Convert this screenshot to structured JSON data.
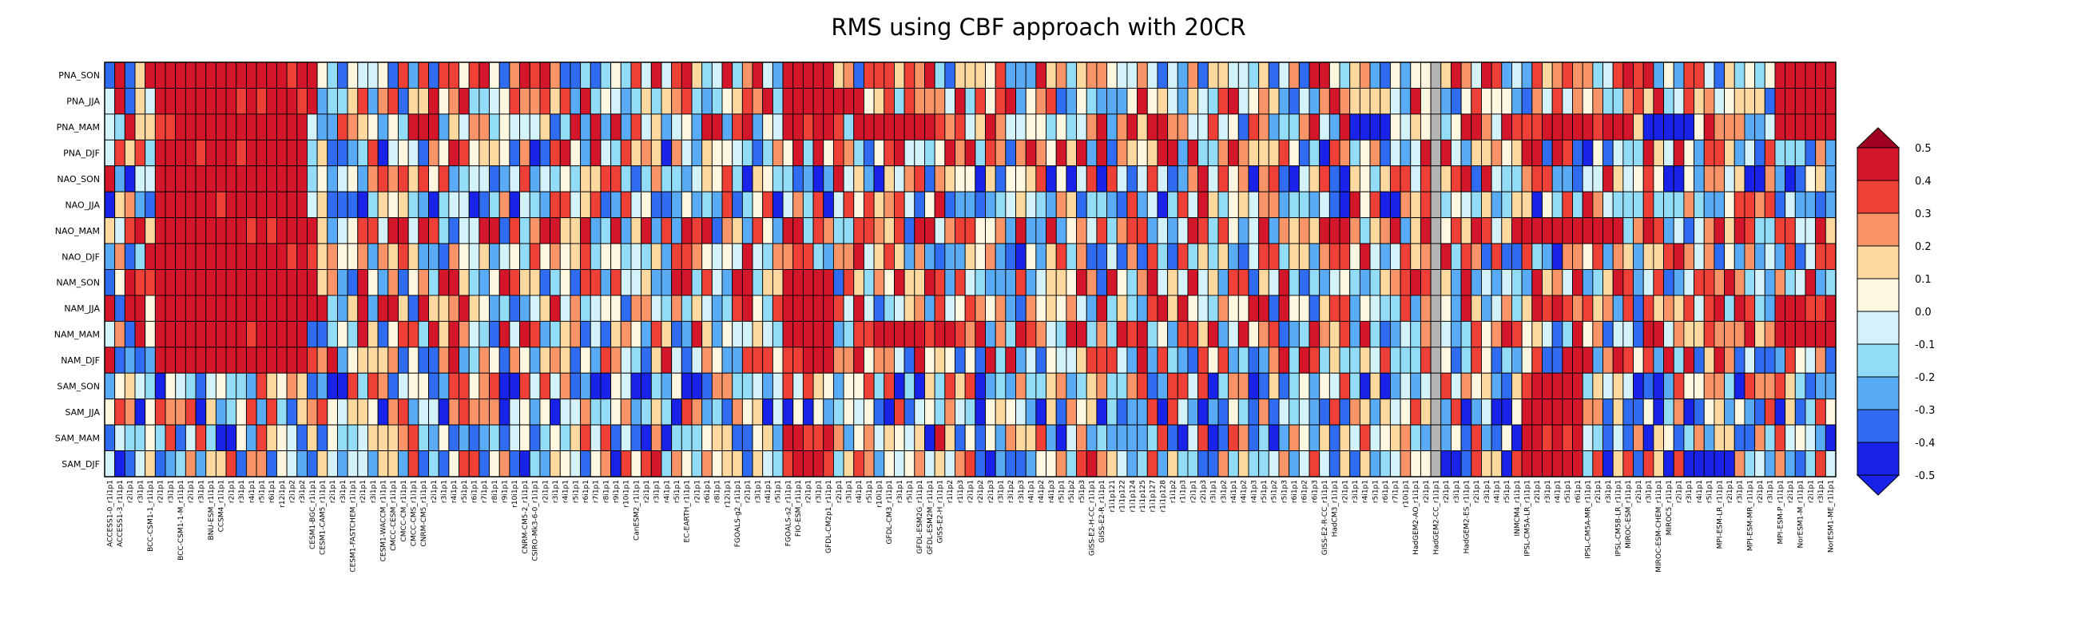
{
  "chart_data": {
    "type": "heatmap",
    "title": "RMS using CBF approach with 20CR",
    "rows": [
      "PNA_SON",
      "PNA_JJA",
      "PNA_MAM",
      "PNA_DJF",
      "NAO_SON",
      "NAO_JJA",
      "NAO_MAM",
      "NAO_DJF",
      "NAM_SON",
      "NAM_JJA",
      "NAM_MAM",
      "NAM_DJF",
      "SAM_SON",
      "SAM_JJA",
      "SAM_MAM",
      "SAM_DJF"
    ],
    "columns": [
      "ACCESS1-0_r1i1p1",
      "ACCESS1-3_r1i1p1",
      "r2i1p1",
      "r3i1p1",
      "BCC-CSM1-1_r1i1p1",
      "r2i1p1",
      "r3i1p1",
      "BCC-CSM1-1-M_r1i1p1",
      "r2i1p1",
      "r3i1p1",
      "BNU-ESM_r1i1p1",
      "CCSM4_r1i1p1",
      "r2i1p1",
      "r3i1p1",
      "r4i1p1",
      "r5i1p1",
      "r6i1p1",
      "r12i1p1",
      "r2i1p2",
      "r3i1p2",
      "CESM1-BGC_r1i1p1",
      "CESM1-CAM5_r1i1p1",
      "r2i1p1",
      "r3i1p1",
      "CESM1-FASTCHEM_r1i1p1",
      "r2i1p1",
      "r3i1p1",
      "CESM1-WACCM_r1i1p1",
      "CMCC-CESM_r1i1p1",
      "CMCC-CM_r1i1p1",
      "CMCC-CMS_r1i1p1",
      "CNRM-CM5_r1i1p1",
      "r2i1p1",
      "r3i1p1",
      "r4i1p1",
      "r5i1p1",
      "r6i1p1",
      "r7i1p1",
      "r8i1p1",
      "r9i1p1",
      "r10i1p1",
      "CNRM-CM5-2_r1i1p1",
      "CSIRO-Mk3-6-0_r1i1p1",
      "r2i1p1",
      "r3i1p1",
      "r4i1p1",
      "r5i1p1",
      "r6i1p1",
      "r7i1p1",
      "r8i1p1",
      "r9i1p1",
      "r10i1p1",
      "CanESM2_r1i1p1",
      "r2i1p1",
      "r3i1p1",
      "r4i1p1",
      "r5i1p1",
      "EC-EARTH_r1i1p1",
      "r2i1p1",
      "r6i1p1",
      "r8i1p1",
      "r12i1p1",
      "FGOALS-g2_r1i1p1",
      "r2i1p1",
      "r3i1p1",
      "r4i1p1",
      "r5i1p1",
      "FGOALS-s2_r1i1p1",
      "FIO-ESM_r1i1p1",
      "r2i1p1",
      "r3i1p1",
      "GFDL-CM2p1_r1i1p1",
      "r2i1p1",
      "r3i1p1",
      "r4i1p1",
      "r5i1p1",
      "r10i1p1",
      "GFDL-CM3_r1i1p1",
      "r3i1p1",
      "r5i1p1",
      "GFDL-ESM2G_r1i1p1",
      "GFDL-ESM2M_r1i1p1",
      "GISS-E2-H_r1i1p1",
      "r1i1p2",
      "r1i1p3",
      "r2i1p1",
      "r2i1p2",
      "r2i1p3",
      "r3i1p1",
      "r3i1p2",
      "r3i1p3",
      "r4i1p1",
      "r4i1p2",
      "r4i1p3",
      "r5i1p1",
      "r5i1p2",
      "r5i1p3",
      "GISS-E2-H-CC_r1i1p1",
      "GISS-E2-R_r1i1p1",
      "r1i1p121",
      "r1i1p122",
      "r1i1p124",
      "r1i1p125",
      "r1i1p127",
      "r1i1p128",
      "r1i1p2",
      "r1i1p3",
      "r2i1p1",
      "r2i1p3",
      "r3i1p1",
      "r3i1p2",
      "r4i1p1",
      "r4i1p2",
      "r4i1p3",
      "r5i1p1",
      "r5i1p2",
      "r5i1p3",
      "r6i1p1",
      "r6i1p2",
      "r6i1p3",
      "GISS-E2-R-CC_r1i1p1",
      "HadCM3_r1i1p1",
      "r2i1p1",
      "r3i1p1",
      "r4i1p1",
      "r5i1p1",
      "r6i1p1",
      "r7i1p1",
      "r10i1p1",
      "HadGEM2-AO_r1i1p1",
      "r2i1p1",
      "HadGEM2-CC_r1i1p1",
      "r2i1p1",
      "r3i1p1",
      "HadGEM2-ES_r1i1p1",
      "r2i1p1",
      "r3i1p1",
      "r4i1p1",
      "r5i1p1",
      "INMCM4_r1i1p1",
      "IPSL-CM5A-LR_r1i1p1",
      "r2i1p1",
      "r3i1p1",
      "r4i1p1",
      "r5i1p1",
      "r6i1p1",
      "IPSL-CM5A-MR_r1i1p1",
      "r2i1p1",
      "r3i1p1",
      "IPSL-CM5B-LR_r1i1p1",
      "MIROC-ESM_r1i1p1",
      "r2i1p1",
      "r3i1p1",
      "MIROC-ESM-CHEM_r1i1p1",
      "MIROC5_r1i1p1",
      "r2i1p1",
      "r3i1p1",
      "r4i1p1",
      "r5i1p1",
      "MPI-ESM-LR_r1i1p1",
      "r2i1p1",
      "r3i1p1",
      "MPI-ESM-MR_r1i1p1",
      "r2i1p1",
      "r3i1p1",
      "MPI-ESM-P_r1i1p1",
      "r2i1p1",
      "NorESM1-M_r1i1p1",
      "r2i1p1",
      "r3i1p1",
      "NorESM1-ME_r1i1p1"
    ],
    "missing_column": "HadGEM2-CC_r1i1p1",
    "colorbar": {
      "levels": [
        -0.5,
        -0.4,
        -0.3,
        -0.2,
        -0.1,
        0.0,
        0.1,
        0.2,
        0.3,
        0.4,
        0.5
      ],
      "colors": [
        "#1822e8",
        "#2f6cf2",
        "#5aabf6",
        "#92dcf8",
        "#d3f2fa",
        "#fff7e0",
        "#fdd9a0",
        "#f99468",
        "#ef4038",
        "#d4162a",
        "#a00020"
      ],
      "missing_color": "#b4b4b4"
    },
    "seed": 20260,
    "row_bias": [
      0.05,
      0.1,
      0.12,
      0.03,
      -0.02,
      -0.02,
      0.12,
      0.02,
      0.05,
      0.08,
      0.1,
      0.05,
      -0.05,
      -0.05,
      -0.04,
      -0.02
    ],
    "hot_blocks": [
      {
        "rows": [
          0,
          11
        ],
        "cols": [
          5,
          19
        ],
        "value": 0.45
      },
      {
        "rows": [
          0,
          2
        ],
        "cols": [
          67,
          71
        ],
        "value": 0.45
      },
      {
        "rows": [
          8,
          11
        ],
        "cols": [
          67,
          71
        ],
        "value": 0.45
      },
      {
        "rows": [
          12,
          15
        ],
        "cols": [
          140,
          145
        ],
        "value": 0.45
      },
      {
        "rows": [
          0,
          2
        ],
        "cols": [
          165,
          170
        ],
        "value": 0.45
      },
      {
        "rows": [
          9,
          10
        ],
        "cols": [
          165,
          170
        ],
        "value": 0.45
      },
      {
        "rows": [
          2,
          2
        ],
        "cols": [
          74,
          82
        ],
        "value": 0.45
      },
      {
        "rows": [
          10,
          10
        ],
        "cols": [
          74,
          82
        ],
        "value": 0.45
      },
      {
        "rows": [
          6,
          6
        ],
        "cols": [
          139,
          149
        ],
        "value": 0.45
      },
      {
        "rows": [
          2,
          2
        ],
        "cols": [
          139,
          149
        ],
        "value": 0.42
      },
      {
        "rows": [
          14,
          15
        ],
        "cols": [
          67,
          71
        ],
        "value": 0.45
      }
    ],
    "cold_blocks": [
      {
        "rows": [
          2,
          2
        ],
        "cols": [
          152,
          156
        ],
        "value": -0.45
      },
      {
        "rows": [
          15,
          15
        ],
        "cols": [
          156,
          160
        ],
        "value": -0.45
      },
      {
        "rows": [
          2,
          2
        ],
        "cols": [
          123,
          126
        ],
        "value": -0.45
      },
      {
        "rows": [
          4,
          5
        ],
        "cols": [
          121,
          122
        ],
        "value": -0.4
      }
    ]
  }
}
